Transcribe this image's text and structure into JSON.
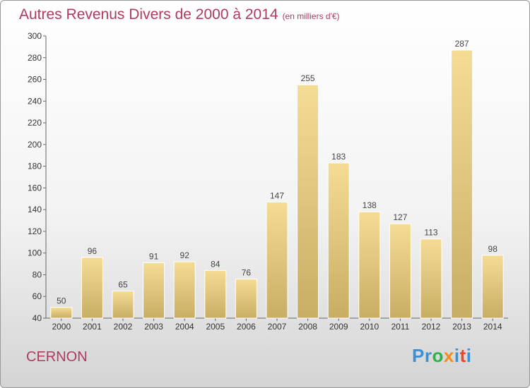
{
  "header": {
    "title": "Autres Revenus Divers de 2000 à 2014",
    "subtitle": "(en milliers d'€)"
  },
  "footer": {
    "commune": "CERNON",
    "logo": {
      "text": "Proxiti",
      "colors": [
        "#3a8fd6",
        "#3a8fd6",
        "#2bb34a",
        "#f28c1a",
        "#3a8fd6",
        "#e8462d",
        "#3a8fd6"
      ]
    }
  },
  "chart_data": {
    "type": "bar",
    "title": "Autres Revenus Divers de 2000 à 2014",
    "subtitle": "(en milliers d'€)",
    "categories": [
      "2000",
      "2001",
      "2002",
      "2003",
      "2004",
      "2005",
      "2006",
      "2007",
      "2008",
      "2009",
      "2010",
      "2011",
      "2012",
      "2013",
      "2014"
    ],
    "values": [
      50,
      96,
      65,
      91,
      92,
      84,
      76,
      147,
      255,
      183,
      138,
      127,
      113,
      287,
      98
    ],
    "ylim": [
      40,
      300
    ],
    "yticks": [
      40,
      60,
      80,
      100,
      120,
      140,
      160,
      180,
      200,
      220,
      240,
      260,
      280,
      300
    ],
    "grid": false,
    "bar_color": "#e5cf8a"
  }
}
